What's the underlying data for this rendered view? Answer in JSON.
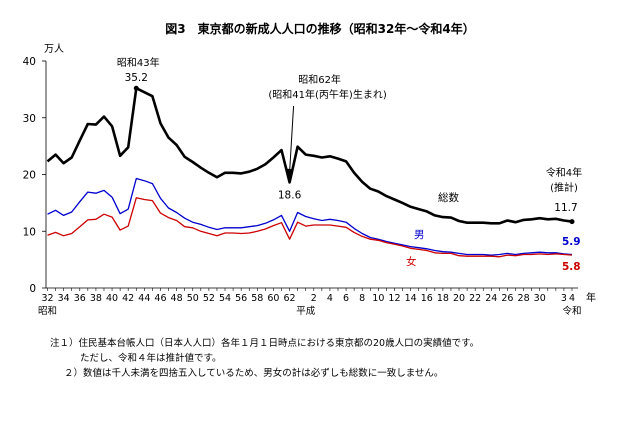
{
  "chart_data": {
    "type": "line",
    "title": "図3　東京都の新成人人口の推移（昭和32年～令和4年）",
    "ylabel": "万人",
    "xlabel": "年",
    "ylim": [
      0,
      40
    ],
    "yticks": [
      0,
      10,
      20,
      30,
      40
    ],
    "grid": false,
    "x": [
      32,
      33,
      34,
      35,
      36,
      37,
      38,
      39,
      40,
      41,
      42,
      43,
      44,
      45,
      46,
      47,
      48,
      49,
      50,
      51,
      52,
      53,
      54,
      55,
      56,
      57,
      58,
      59,
      60,
      61,
      62,
      63,
      1,
      2,
      3,
      4,
      5,
      6,
      7,
      8,
      9,
      10,
      11,
      12,
      13,
      14,
      15,
      16,
      17,
      18,
      19,
      20,
      21,
      22,
      23,
      24,
      25,
      26,
      27,
      28,
      29,
      30,
      31,
      2,
      3,
      4
    ],
    "x_tick_labels": [
      "32",
      "34",
      "36",
      "38",
      "40",
      "42",
      "44",
      "46",
      "48",
      "50",
      "52",
      "54",
      "56",
      "58",
      "60",
      "62",
      "2",
      "4",
      "6",
      "8",
      "10",
      "12",
      "14",
      "16",
      "18",
      "20",
      "22",
      "24",
      "26",
      "28",
      "30",
      "3",
      "4"
    ],
    "x_tick_index": [
      0,
      2,
      4,
      6,
      8,
      10,
      12,
      14,
      16,
      18,
      20,
      22,
      24,
      26,
      28,
      30,
      33,
      35,
      37,
      39,
      41,
      43,
      45,
      47,
      49,
      51,
      53,
      55,
      57,
      59,
      61,
      64,
      65
    ],
    "era_labels": [
      {
        "index": 0,
        "label": "昭和"
      },
      {
        "index": 32,
        "label": "平成"
      },
      {
        "index": 65,
        "label": "令和"
      }
    ],
    "series": [
      {
        "name": "総数",
        "color": "#000000",
        "values": [
          22.3,
          23.5,
          22.0,
          23.0,
          26.0,
          28.9,
          28.8,
          30.2,
          28.5,
          23.3,
          24.8,
          35.2,
          34.5,
          33.8,
          29.0,
          26.5,
          25.2,
          23.1,
          22.2,
          21.2,
          20.3,
          19.5,
          20.3,
          20.3,
          20.2,
          20.5,
          21.0,
          21.8,
          23.0,
          24.3,
          18.6,
          24.9,
          23.5,
          23.3,
          23.0,
          23.2,
          22.8,
          22.3,
          20.3,
          18.7,
          17.5,
          17.0,
          16.2,
          15.6,
          15.0,
          14.3,
          13.9,
          13.5,
          12.8,
          12.5,
          12.4,
          11.8,
          11.5,
          11.5,
          11.5,
          11.4,
          11.4,
          11.9,
          11.6,
          12.0,
          12.1,
          12.3,
          12.1,
          12.2,
          11.9,
          11.7
        ]
      },
      {
        "name": "男",
        "color": "#0000cc",
        "values": [
          13.0,
          13.7,
          12.8,
          13.4,
          15.2,
          16.9,
          16.7,
          17.2,
          16.0,
          13.1,
          13.9,
          19.3,
          18.9,
          18.4,
          15.8,
          14.1,
          13.3,
          12.3,
          11.6,
          11.2,
          10.7,
          10.3,
          10.6,
          10.6,
          10.6,
          10.8,
          11.0,
          11.4,
          12.0,
          12.8,
          10.0,
          13.3,
          12.6,
          12.2,
          11.9,
          12.1,
          11.9,
          11.6,
          10.5,
          9.6,
          8.9,
          8.6,
          8.2,
          7.9,
          7.6,
          7.3,
          7.1,
          6.9,
          6.6,
          6.4,
          6.3,
          6.1,
          5.9,
          5.9,
          5.9,
          5.8,
          5.9,
          6.1,
          5.9,
          6.1,
          6.2,
          6.3,
          6.2,
          6.2,
          6.0,
          5.9
        ]
      },
      {
        "name": "女",
        "color": "#cc0000",
        "values": [
          9.3,
          9.8,
          9.2,
          9.6,
          10.8,
          12.0,
          12.1,
          13.0,
          12.5,
          10.2,
          10.9,
          15.9,
          15.6,
          15.4,
          13.2,
          12.4,
          11.9,
          10.8,
          10.6,
          10.0,
          9.6,
          9.2,
          9.7,
          9.7,
          9.6,
          9.7,
          10.0,
          10.4,
          11.0,
          11.5,
          8.6,
          11.6,
          10.9,
          11.1,
          11.1,
          11.1,
          10.9,
          10.7,
          9.8,
          9.1,
          8.6,
          8.4,
          8.0,
          7.7,
          7.4,
          7.0,
          6.8,
          6.6,
          6.2,
          6.1,
          6.1,
          5.7,
          5.6,
          5.6,
          5.6,
          5.6,
          5.5,
          5.8,
          5.7,
          5.9,
          5.9,
          6.0,
          5.9,
          6.0,
          5.9,
          5.8
        ]
      }
    ],
    "annotations": {
      "peak": {
        "index": 11,
        "label": "昭和43年",
        "value_label": "35.2"
      },
      "hinoe": {
        "index": 30,
        "line1": "昭和62年",
        "line2": "(昭和41年(丙午年)生まれ)",
        "value_label": "18.6"
      },
      "latest": {
        "index": 65,
        "line1": "令和4年",
        "line2": "(推計)",
        "total_label": "11.7",
        "male_label": "5.9",
        "female_label": "5.8"
      }
    }
  },
  "notes": [
    "注１）住民基本台帳人口（日本人人口）各年１月１日時点における東京都の20歳人口の実績値です。",
    "ただし、令和４年は推計値です。",
    "２）数値は千人未満を四捨五入しているため、男女の計は必ずしも総数に一致しません。"
  ]
}
